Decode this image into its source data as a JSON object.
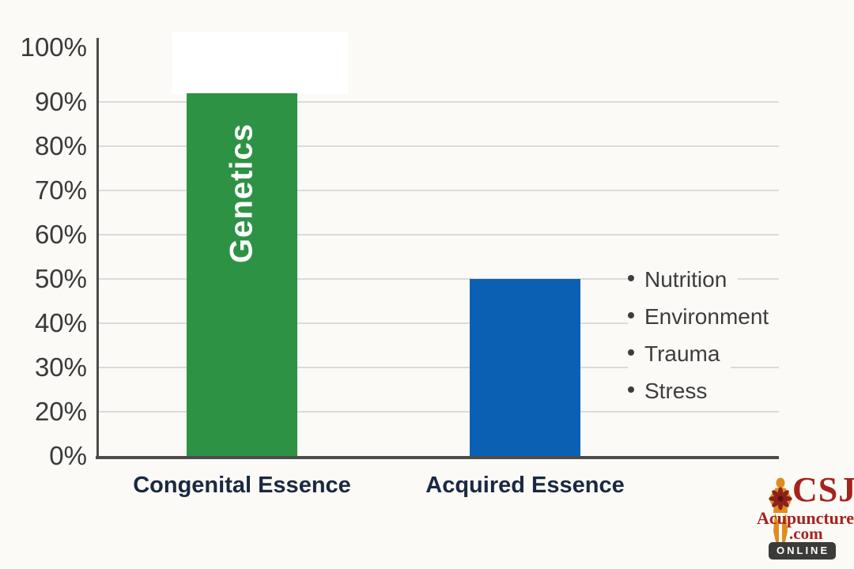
{
  "chart_data": {
    "type": "bar",
    "title": "",
    "xlabel": "",
    "ylabel": "",
    "categories": [
      "Congenital Essence",
      "Acquired Essence"
    ],
    "values": [
      92,
      50
    ],
    "bar_labels": [
      "Genetics",
      ""
    ],
    "bar_colors": [
      "#2e9245",
      "#0b60b4"
    ],
    "y_tick_labels": [
      "0%",
      "20%",
      "30%",
      "40%",
      "50%",
      "60%",
      "70%",
      "80%",
      "90%",
      "100%"
    ],
    "ylim": [
      0,
      100
    ],
    "y_axis_note": "10% tick label is omitted on the original chart; visible ticks are equally spaced",
    "grid": true,
    "legend": false,
    "annotations": [
      "Nutrition",
      "Environment",
      "Trauma",
      "Stress"
    ]
  },
  "colors": {
    "background": "#fbfaf7",
    "gridline": "#dbdbdb",
    "axis": "#4c4c4c",
    "tick_text": "#3a3a3a",
    "category_text": "#1a2940",
    "bullet_text": "#3d3d3d",
    "green_bar": "#2e9245",
    "blue_bar": "#0b60b4",
    "logo_red": "#a6231d",
    "logo_orange": "#de8d1d",
    "badge_bg": "#3b3b39"
  },
  "logo": {
    "brand": "CSJ",
    "name": "Acupuncture",
    "tld": ".com",
    "badge": "ONLINE",
    "icon": "acupuncture-figure-icon"
  }
}
